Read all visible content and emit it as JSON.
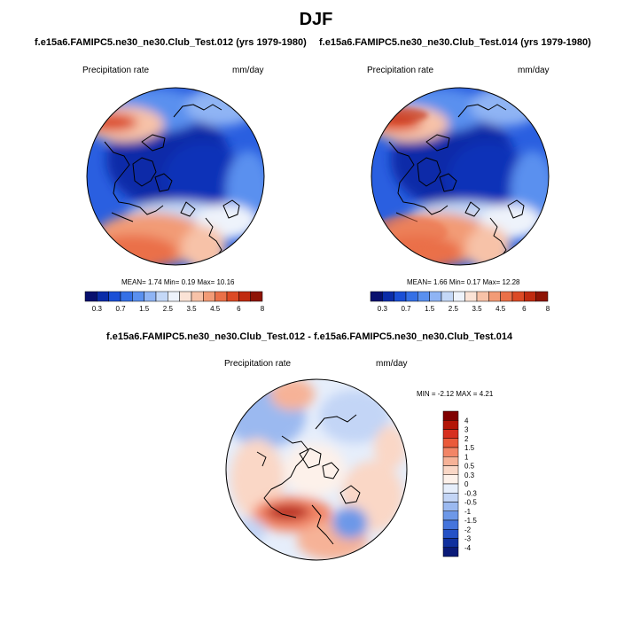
{
  "season": "DJF",
  "panels": [
    {
      "case_label": "f.e15a6.FAMIPC5.ne30_ne30.Club_Test.012 (yrs 1979-1980)",
      "variable": "Precipitation rate",
      "units": "mm/day",
      "stats": {
        "mean": "1.74",
        "min": "0.19",
        "max": "10.16"
      }
    },
    {
      "case_label": "f.e15a6.FAMIPC5.ne30_ne30.Club_Test.014 (yrs 1979-1980)",
      "variable": "Precipitation rate",
      "units": "mm/day",
      "stats": {
        "mean": "1.66",
        "min": "0.17",
        "max": "12.28"
      }
    }
  ],
  "stat_labels": {
    "mean": "MEAN=",
    "min": "Min=",
    "max": "Max="
  },
  "diff_panel": {
    "title": "f.e15a6.FAMIPC5.ne30_ne30.Club_Test.012 - f.e15a6.FAMIPC5.ne30_ne30.Club_Test.014",
    "variable": "Precipitation rate",
    "units": "mm/day",
    "min_max": "MIN =  -2.12 MAX =   4.21"
  },
  "abs_colorbar": {
    "colors": [
      "#08106e",
      "#0a2ca8",
      "#1a4fd6",
      "#3570e6",
      "#5a90ef",
      "#8fb4f4",
      "#c4d8f7",
      "#eef3fb",
      "#fbe3d6",
      "#f7c2a8",
      "#f29b76",
      "#ea7048",
      "#dc4a25",
      "#c02b10",
      "#8e1405"
    ],
    "tick_labels": [
      "0.3",
      "0.7",
      "1.5",
      "2.5",
      "3.5",
      "4.5",
      "6",
      "8"
    ]
  },
  "diff_colorbar": {
    "colors": [
      "#800000",
      "#b31607",
      "#d7301f",
      "#ea5a3a",
      "#f28566",
      "#f6b297",
      "#fad7c6",
      "#fdf1ea",
      "#e6eefb",
      "#c3d5f6",
      "#9bb9f0",
      "#6d98e8",
      "#4474dc",
      "#2451c6",
      "#10309e",
      "#0a1a78"
    ],
    "tick_labels": [
      "4",
      "3",
      "2",
      "1.5",
      "1",
      "0.5",
      "0.3",
      "0",
      "-0.3",
      "-0.5",
      "-1",
      "-1.5",
      "-2",
      "-3",
      "-4"
    ]
  }
}
